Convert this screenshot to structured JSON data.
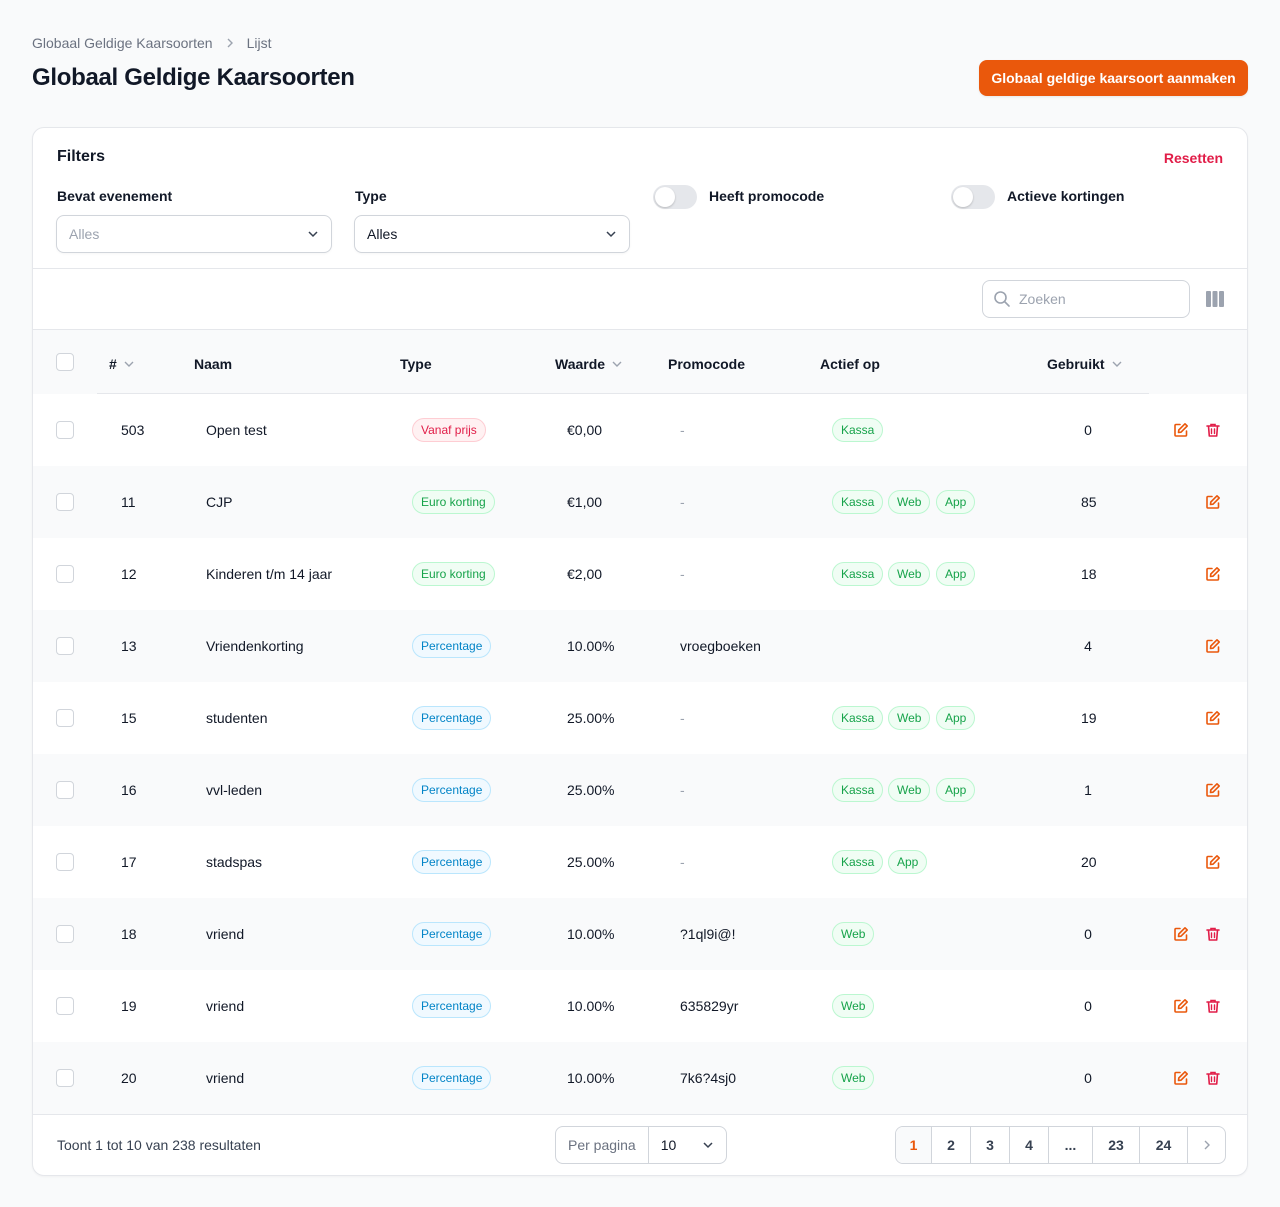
{
  "breadcrumb": {
    "parent": "Globaal Geldige Kaarsoorten",
    "current": "Lijst"
  },
  "page_title": "Globaal Geldige Kaarsoorten",
  "create_button": "Globaal geldige kaarsoort aanmaken",
  "filters": {
    "title": "Filters",
    "reset": "Resetten",
    "event_label": "Bevat evenement",
    "event_value": "Alles",
    "type_label": "Type",
    "type_value": "Alles",
    "promocode_label": "Heeft promocode",
    "discounts_label": "Actieve kortingen"
  },
  "search": {
    "placeholder": "Zoeken"
  },
  "columns": {
    "id": "#",
    "name": "Naam",
    "type": "Type",
    "value": "Waarde",
    "promocode": "Promocode",
    "active_on": "Actief op",
    "used": "Gebruikt"
  },
  "rows": [
    {
      "id": "503",
      "name": "Open test",
      "type": "Vanaf prijs",
      "type_color": "red",
      "value": "€0,00",
      "promocode": "-",
      "active_on": [
        "Kassa"
      ],
      "used": "0",
      "deletable": true
    },
    {
      "id": "11",
      "name": "CJP",
      "type": "Euro korting",
      "type_color": "green",
      "value": "€1,00",
      "promocode": "-",
      "active_on": [
        "Kassa",
        "Web",
        "App"
      ],
      "used": "85",
      "deletable": false
    },
    {
      "id": "12",
      "name": "Kinderen t/m 14 jaar",
      "type": "Euro korting",
      "type_color": "green",
      "value": "€2,00",
      "promocode": "-",
      "active_on": [
        "Kassa",
        "Web",
        "App"
      ],
      "used": "18",
      "deletable": false
    },
    {
      "id": "13",
      "name": "Vriendenkorting",
      "type": "Percentage",
      "type_color": "blue",
      "value": "10.00%",
      "promocode": "vroegboeken",
      "active_on": [],
      "used": "4",
      "deletable": false
    },
    {
      "id": "15",
      "name": "studenten",
      "type": "Percentage",
      "type_color": "blue",
      "value": "25.00%",
      "promocode": "-",
      "active_on": [
        "Kassa",
        "Web",
        "App"
      ],
      "used": "19",
      "deletable": false
    },
    {
      "id": "16",
      "name": "vvl-leden",
      "type": "Percentage",
      "type_color": "blue",
      "value": "25.00%",
      "promocode": "-",
      "active_on": [
        "Kassa",
        "Web",
        "App"
      ],
      "used": "1",
      "deletable": false
    },
    {
      "id": "17",
      "name": "stadspas",
      "type": "Percentage",
      "type_color": "blue",
      "value": "25.00%",
      "promocode": "-",
      "active_on": [
        "Kassa",
        "App"
      ],
      "used": "20",
      "deletable": false
    },
    {
      "id": "18",
      "name": "vriend",
      "type": "Percentage",
      "type_color": "blue",
      "value": "10.00%",
      "promocode": "?1ql9i@!",
      "active_on": [
        "Web"
      ],
      "used": "0",
      "deletable": true
    },
    {
      "id": "19",
      "name": "vriend",
      "type": "Percentage",
      "type_color": "blue",
      "value": "10.00%",
      "promocode": "635829yr",
      "active_on": [
        "Web"
      ],
      "used": "0",
      "deletable": true
    },
    {
      "id": "20",
      "name": "vriend",
      "type": "Percentage",
      "type_color": "blue",
      "value": "10.00%",
      "promocode": "7k6?4sj0",
      "active_on": [
        "Web"
      ],
      "used": "0",
      "deletable": true
    }
  ],
  "footer": {
    "summary": "Toont 1 tot 10 van 238 resultaten",
    "per_page_label": "Per pagina",
    "per_page_value": "10",
    "pages": [
      "1",
      "2",
      "3",
      "4",
      "...",
      "23",
      "24"
    ],
    "current_page": "1"
  },
  "colors": {
    "accent": "#ea580c",
    "danger": "#e11d48",
    "success": "#16a34a",
    "info": "#0284c7"
  }
}
